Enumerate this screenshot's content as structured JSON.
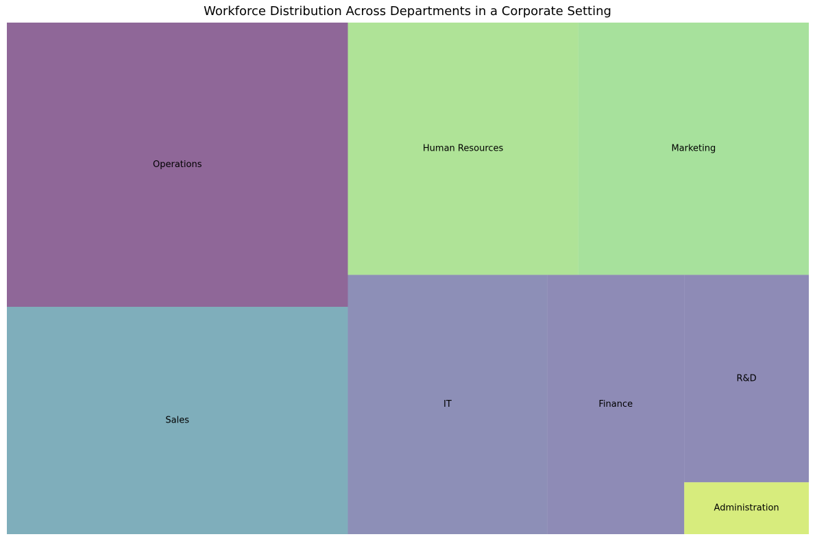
{
  "chart_data": {
    "type": "treemap",
    "title": "Workforce Distribution Across Departments in a Corporate Setting",
    "alpha": 0.6,
    "categories": [
      "Operations",
      "Sales",
      "Human Resources",
      "Marketing",
      "IT",
      "R&D",
      "Finance",
      "Administration"
    ],
    "values": [
      30,
      24,
      18,
      18,
      16,
      8,
      11,
      2
    ],
    "colors": [
      "#440154",
      "#2a788e",
      "#7ad151",
      "#6ccd5a",
      "#414487",
      "#433e85",
      "#433e85",
      "#bddf26"
    ]
  }
}
